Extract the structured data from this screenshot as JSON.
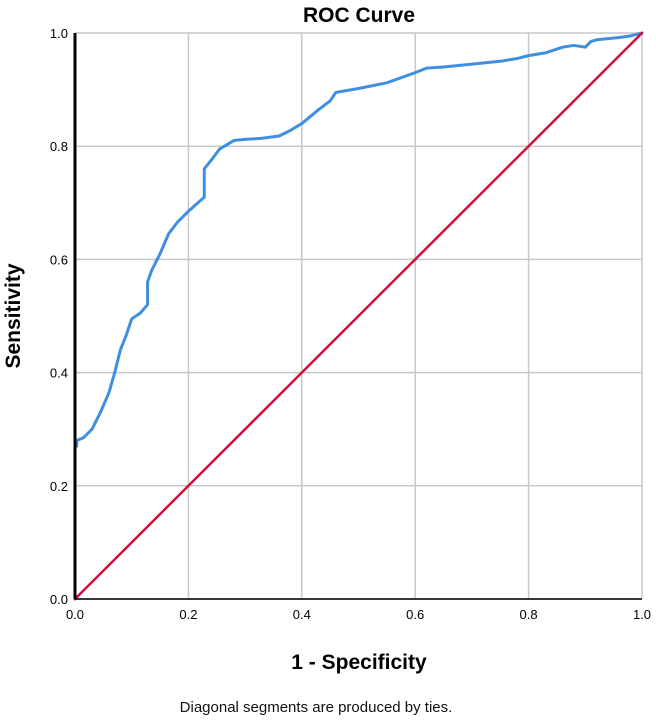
{
  "chart_data": {
    "type": "line",
    "title": "ROC Curve",
    "xlabel": "1 - Specificity",
    "ylabel": "Sensitivity",
    "footnote": "Diagonal segments are produced by ties.",
    "xlim": [
      0.0,
      1.0
    ],
    "ylim": [
      0.0,
      1.0
    ],
    "x_ticks": [
      "0.0",
      "0.2",
      "0.4",
      "0.6",
      "0.8",
      "1.0"
    ],
    "y_ticks": [
      "0.0",
      "0.2",
      "0.4",
      "0.6",
      "0.8",
      "1.0"
    ],
    "grid": true,
    "colors": {
      "roc": "#3f8fe0",
      "reference": "#d0103a",
      "grid": "#c8c8c8",
      "axis": "#000000"
    },
    "series": [
      {
        "key": "roc",
        "x": [
          0.0,
          0.0,
          0.0,
          0.003,
          0.003,
          0.015,
          0.03,
          0.045,
          0.06,
          0.07,
          0.08,
          0.09,
          0.1,
          0.115,
          0.128,
          0.128,
          0.135,
          0.15,
          0.165,
          0.18,
          0.2,
          0.228,
          0.228,
          0.24,
          0.255,
          0.28,
          0.3,
          0.33,
          0.36,
          0.38,
          0.4,
          0.43,
          0.45,
          0.46,
          0.5,
          0.55,
          0.6,
          0.62,
          0.65,
          0.7,
          0.75,
          0.78,
          0.8,
          0.83,
          0.86,
          0.88,
          0.9,
          0.91,
          0.92,
          0.94,
          0.96,
          0.98,
          1.0
        ],
        "y": [
          0.0,
          0.12,
          0.27,
          0.27,
          0.28,
          0.285,
          0.3,
          0.33,
          0.365,
          0.4,
          0.44,
          0.465,
          0.495,
          0.505,
          0.52,
          0.56,
          0.58,
          0.61,
          0.645,
          0.665,
          0.685,
          0.71,
          0.76,
          0.775,
          0.795,
          0.81,
          0.812,
          0.814,
          0.818,
          0.828,
          0.84,
          0.865,
          0.88,
          0.895,
          0.902,
          0.912,
          0.93,
          0.938,
          0.94,
          0.945,
          0.95,
          0.955,
          0.96,
          0.965,
          0.975,
          0.978,
          0.975,
          0.985,
          0.988,
          0.99,
          0.992,
          0.995,
          1.0
        ]
      },
      {
        "key": "reference",
        "x": [
          0.0,
          1.0
        ],
        "y": [
          0.0,
          1.0
        ]
      }
    ]
  }
}
